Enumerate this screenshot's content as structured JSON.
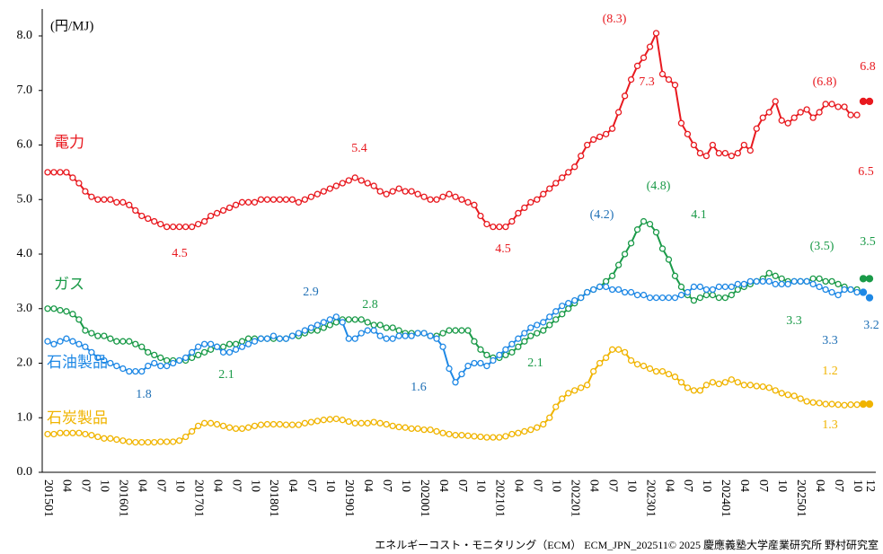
{
  "chart_data": {
    "type": "line",
    "y_unit": "(円/MJ)",
    "credit": "エネルギーコスト・モニタリング（ECM） ECM_JPN_202511© 2025 慶應義塾大学産業研究所 野村研究室",
    "categories": [
      "201501",
      null,
      null,
      "04",
      null,
      null,
      "07",
      null,
      null,
      "10",
      null,
      null,
      "201601",
      null,
      null,
      "04",
      null,
      null,
      "07",
      null,
      null,
      "10",
      null,
      null,
      "201701",
      null,
      null,
      "04",
      null,
      null,
      "07",
      null,
      null,
      "10",
      null,
      null,
      "201801",
      null,
      null,
      "04",
      null,
      null,
      "07",
      null,
      null,
      "10",
      null,
      null,
      "201901",
      null,
      null,
      "04",
      null,
      null,
      "07",
      null,
      null,
      "10",
      null,
      null,
      "202001",
      null,
      null,
      "04",
      null,
      null,
      "07",
      null,
      null,
      "10",
      null,
      null,
      "202101",
      null,
      null,
      "04",
      null,
      null,
      "07",
      null,
      null,
      "10",
      null,
      null,
      "202201",
      null,
      null,
      "04",
      null,
      null,
      "07",
      null,
      null,
      "10",
      null,
      null,
      "202301",
      null,
      null,
      "04",
      null,
      null,
      "07",
      null,
      null,
      "10",
      null,
      null,
      "202401",
      null,
      null,
      "04",
      null,
      null,
      "07",
      null,
      null,
      "10",
      null,
      null,
      "202501",
      null,
      null,
      "04",
      null,
      null,
      "07",
      null,
      null,
      "10",
      null,
      "12"
    ],
    "ylim": [
      0,
      8
    ],
    "yticks": [
      {
        "value": 0,
        "label": "0.0"
      },
      {
        "value": 1,
        "label": "1.0"
      },
      {
        "value": 2,
        "label": "2.0"
      },
      {
        "value": 3,
        "label": "3.0"
      },
      {
        "value": 4,
        "label": "4.0"
      },
      {
        "value": 5,
        "label": "5.0"
      },
      {
        "value": 6,
        "label": "6.0"
      },
      {
        "value": 7,
        "label": "7.0"
      },
      {
        "value": 8,
        "label": "8.0"
      }
    ],
    "series": [
      {
        "name": "電力",
        "color": "#e8191f",
        "values": [
          5.5,
          5.5,
          5.5,
          5.5,
          5.4,
          5.3,
          5.15,
          5.05,
          5.0,
          5.0,
          5.0,
          4.95,
          4.95,
          4.9,
          4.8,
          4.7,
          4.65,
          4.6,
          4.55,
          4.5,
          4.5,
          4.5,
          4.5,
          4.5,
          4.55,
          4.6,
          4.7,
          4.75,
          4.8,
          4.85,
          4.9,
          4.95,
          4.95,
          4.95,
          5.0,
          5.0,
          5.0,
          5.0,
          5.0,
          5.0,
          4.95,
          5.0,
          5.05,
          5.1,
          5.15,
          5.2,
          5.25,
          5.3,
          5.35,
          5.4,
          5.35,
          5.3,
          5.25,
          5.15,
          5.1,
          5.15,
          5.2,
          5.15,
          5.15,
          5.1,
          5.05,
          5.0,
          5.0,
          5.05,
          5.1,
          5.05,
          5.0,
          4.95,
          4.9,
          4.7,
          4.55,
          4.5,
          4.5,
          4.5,
          4.6,
          4.75,
          4.85,
          4.95,
          5.0,
          5.1,
          5.2,
          5.3,
          5.4,
          5.5,
          5.6,
          5.8,
          6.0,
          6.1,
          6.15,
          6.2,
          6.3,
          6.6,
          6.9,
          7.2,
          7.45,
          7.6,
          7.8,
          8.05,
          7.3,
          7.2,
          7.1,
          6.4,
          6.2,
          6.0,
          5.85,
          5.8,
          6.0,
          5.85,
          5.85,
          5.8,
          5.85,
          6.0,
          5.9,
          6.3,
          6.5,
          6.6,
          6.8,
          6.45,
          6.4,
          6.5,
          6.6,
          6.65,
          6.5,
          6.6,
          6.75,
          6.75,
          6.7,
          6.7,
          6.55,
          6.55,
          6.8,
          6.8
        ]
      },
      {
        "name": "ガス",
        "color": "#1a9a48",
        "values": [
          3.0,
          3.0,
          2.97,
          2.95,
          2.9,
          2.8,
          2.6,
          2.55,
          2.5,
          2.5,
          2.45,
          2.4,
          2.4,
          2.4,
          2.35,
          2.3,
          2.2,
          2.15,
          2.1,
          2.05,
          2.05,
          2.05,
          2.05,
          2.1,
          2.15,
          2.2,
          2.25,
          2.3,
          2.3,
          2.35,
          2.35,
          2.4,
          2.45,
          2.45,
          2.45,
          2.45,
          2.45,
          2.45,
          2.45,
          2.5,
          2.5,
          2.55,
          2.6,
          2.6,
          2.65,
          2.7,
          2.75,
          2.8,
          2.8,
          2.8,
          2.8,
          2.75,
          2.7,
          2.7,
          2.65,
          2.65,
          2.6,
          2.55,
          2.55,
          2.55,
          2.55,
          2.5,
          2.5,
          2.55,
          2.6,
          2.6,
          2.6,
          2.6,
          2.4,
          2.25,
          2.15,
          2.1,
          2.1,
          2.15,
          2.2,
          2.3,
          2.4,
          2.5,
          2.55,
          2.6,
          2.7,
          2.8,
          2.9,
          3.0,
          3.1,
          3.2,
          3.3,
          3.35,
          3.4,
          3.5,
          3.6,
          3.8,
          4.0,
          4.2,
          4.45,
          4.6,
          4.55,
          4.4,
          4.1,
          3.9,
          3.6,
          3.4,
          3.25,
          3.15,
          3.2,
          3.25,
          3.25,
          3.2,
          3.2,
          3.25,
          3.35,
          3.4,
          3.45,
          3.5,
          3.55,
          3.65,
          3.6,
          3.55,
          3.5,
          3.5,
          3.5,
          3.5,
          3.55,
          3.55,
          3.5,
          3.5,
          3.45,
          3.4,
          3.35,
          3.35,
          3.55,
          3.55
        ]
      },
      {
        "name": "石油製品",
        "color": "#1e88e5",
        "values": [
          2.4,
          2.35,
          2.4,
          2.45,
          2.4,
          2.35,
          2.3,
          2.2,
          2.1,
          2.05,
          2.0,
          1.95,
          1.9,
          1.85,
          1.85,
          1.85,
          1.95,
          2.0,
          1.95,
          1.95,
          2.0,
          2.05,
          2.1,
          2.2,
          2.3,
          2.35,
          2.35,
          2.3,
          2.2,
          2.2,
          2.25,
          2.3,
          2.35,
          2.4,
          2.45,
          2.45,
          2.5,
          2.45,
          2.45,
          2.5,
          2.55,
          2.6,
          2.65,
          2.7,
          2.75,
          2.8,
          2.85,
          2.75,
          2.45,
          2.45,
          2.55,
          2.6,
          2.6,
          2.5,
          2.45,
          2.45,
          2.5,
          2.5,
          2.5,
          2.55,
          2.55,
          2.5,
          2.45,
          2.3,
          1.9,
          1.65,
          1.8,
          1.95,
          2.0,
          2.0,
          1.95,
          2.05,
          2.15,
          2.25,
          2.35,
          2.45,
          2.55,
          2.65,
          2.7,
          2.75,
          2.85,
          2.95,
          3.05,
          3.1,
          3.15,
          3.2,
          3.3,
          3.35,
          3.4,
          3.4,
          3.35,
          3.35,
          3.3,
          3.3,
          3.25,
          3.25,
          3.2,
          3.2,
          3.2,
          3.2,
          3.2,
          3.25,
          3.3,
          3.4,
          3.4,
          3.35,
          3.35,
          3.4,
          3.4,
          3.4,
          3.45,
          3.45,
          3.5,
          3.5,
          3.5,
          3.5,
          3.45,
          3.45,
          3.45,
          3.5,
          3.5,
          3.5,
          3.45,
          3.4,
          3.35,
          3.3,
          3.25,
          3.35,
          3.35,
          3.3,
          3.3,
          3.2
        ]
      },
      {
        "name": "石炭製品",
        "color": "#f0b400",
        "values": [
          0.7,
          0.7,
          0.72,
          0.72,
          0.72,
          0.72,
          0.7,
          0.68,
          0.65,
          0.62,
          0.62,
          0.6,
          0.58,
          0.56,
          0.55,
          0.55,
          0.55,
          0.55,
          0.56,
          0.56,
          0.56,
          0.58,
          0.65,
          0.75,
          0.85,
          0.9,
          0.9,
          0.88,
          0.85,
          0.82,
          0.8,
          0.8,
          0.82,
          0.85,
          0.87,
          0.88,
          0.88,
          0.88,
          0.87,
          0.87,
          0.87,
          0.9,
          0.92,
          0.94,
          0.96,
          0.97,
          0.98,
          0.96,
          0.93,
          0.9,
          0.9,
          0.9,
          0.92,
          0.9,
          0.88,
          0.85,
          0.83,
          0.82,
          0.8,
          0.8,
          0.78,
          0.78,
          0.75,
          0.72,
          0.7,
          0.68,
          0.68,
          0.67,
          0.66,
          0.65,
          0.64,
          0.64,
          0.64,
          0.66,
          0.7,
          0.72,
          0.75,
          0.78,
          0.82,
          0.88,
          1.0,
          1.2,
          1.35,
          1.45,
          1.5,
          1.55,
          1.6,
          1.85,
          2.0,
          2.1,
          2.25,
          2.25,
          2.2,
          2.05,
          1.98,
          1.95,
          1.9,
          1.85,
          1.85,
          1.8,
          1.75,
          1.65,
          1.55,
          1.5,
          1.5,
          1.6,
          1.65,
          1.62,
          1.65,
          1.7,
          1.65,
          1.6,
          1.6,
          1.58,
          1.57,
          1.55,
          1.5,
          1.45,
          1.42,
          1.4,
          1.35,
          1.3,
          1.28,
          1.27,
          1.25,
          1.25,
          1.24,
          1.23,
          1.24,
          1.24,
          1.25,
          1.25
        ]
      }
    ],
    "annotations": [
      {
        "text": "(8.3)",
        "color": "#e8191f"
      },
      {
        "text": "7.3",
        "color": "#e8191f"
      },
      {
        "text": "(6.8)",
        "color": "#e8191f"
      },
      {
        "text": "6.8",
        "color": "#e8191f"
      },
      {
        "text": "6.5",
        "color": "#e8191f"
      },
      {
        "text": "5.4",
        "color": "#e8191f"
      },
      {
        "text": "4.5",
        "color": "#e8191f"
      },
      {
        "text": "4.5",
        "color": "#e8191f"
      },
      {
        "text": "(4.2)",
        "color": "#1e6fb5"
      },
      {
        "text": "(4.8)",
        "color": "#1a9a48"
      },
      {
        "text": "4.1",
        "color": "#1a9a48"
      },
      {
        "text": "2.9",
        "color": "#1e6fb5"
      },
      {
        "text": "2.8",
        "color": "#1a9a48"
      },
      {
        "text": "1.8",
        "color": "#1e6fb5"
      },
      {
        "text": "2.1",
        "color": "#1a9a48"
      },
      {
        "text": "1.6",
        "color": "#1e6fb5"
      },
      {
        "text": "2.1",
        "color": "#1a9a48"
      },
      {
        "text": "(3.5)",
        "color": "#1a9a48"
      },
      {
        "text": "3.5",
        "color": "#1a9a48"
      },
      {
        "text": "3.3",
        "color": "#1a9a48"
      },
      {
        "text": "3.3",
        "color": "#1e6fb5"
      },
      {
        "text": "3.2",
        "color": "#1e6fb5"
      },
      {
        "text": "1.2",
        "color": "#f0b400"
      },
      {
        "text": "1.3",
        "color": "#f0b400"
      }
    ]
  }
}
